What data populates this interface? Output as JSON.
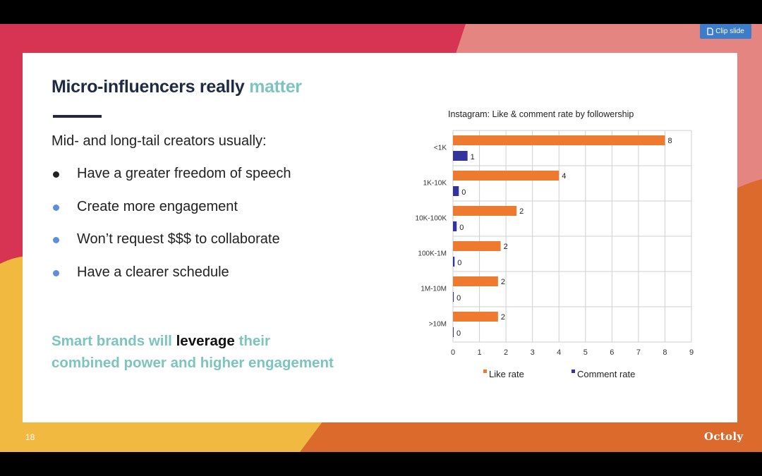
{
  "toolbar": {
    "clip_label": "Clip slide",
    "clip_icon": "clip-icon"
  },
  "slide": {
    "title_main": "Micro-influencers really",
    "title_accent": "matter",
    "intro": "Mid- and long-tail creators usually:",
    "bullets": [
      {
        "text": "Have a greater freedom of speech",
        "color": "#222222"
      },
      {
        "text": "Create more engagement",
        "color": "#5b8fdc"
      },
      {
        "text": "Won’t request $$$ to collaborate",
        "color": "#5b8fdc"
      },
      {
        "text": "Have a clearer schedule",
        "color": "#5b8fdc"
      }
    ],
    "tagline_part1": "Smart brands will",
    "tagline_strong": "leverage",
    "tagline_part2": "their",
    "tagline_line2": "combined power and higher engagement",
    "number": "18",
    "logo": "Octoly"
  },
  "colors": {
    "accent": "#7cc4be",
    "dark": "#1f2a44",
    "like": "#ee7a30",
    "comment": "#33339a"
  },
  "chart_data": {
    "type": "bar",
    "orientation": "horizontal",
    "title": "Instagram: Like & comment rate by followership",
    "categories": [
      "<1K",
      "1K-10K",
      "10K-100K",
      "100K-1M",
      "1M-10M",
      ">10M"
    ],
    "series": [
      {
        "name": "Like rate",
        "color": "#ee7a30",
        "values": [
          8,
          4,
          2.4,
          1.8,
          1.7,
          1.7
        ],
        "labels": [
          "8",
          "4",
          "2",
          "2",
          "2",
          "2"
        ]
      },
      {
        "name": "Comment rate",
        "color": "#33339a",
        "values": [
          0.55,
          0.22,
          0.14,
          0.06,
          0.03,
          0.02
        ],
        "labels": [
          "1",
          "0",
          "0",
          "0",
          "0",
          "0"
        ]
      }
    ],
    "xlim": [
      0,
      9
    ],
    "xticks": [
      "0",
      "1",
      "2",
      "3",
      "4",
      "5",
      "6",
      "7",
      "8",
      "9"
    ],
    "grid": true,
    "legend": "bottom"
  }
}
